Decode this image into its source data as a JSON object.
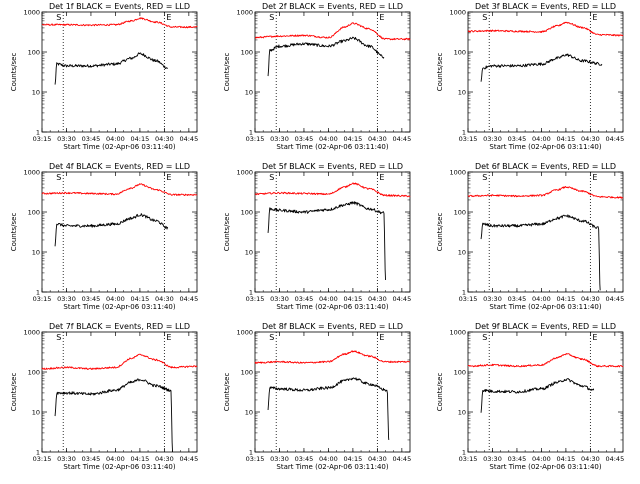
{
  "page": {
    "figure": "detector count-rate grid"
  },
  "common": {
    "xlabel": "Start Time (02-Apr-06 03:11:40)",
    "ylabel": "Counts/sec",
    "x_ticks": [
      "03:15",
      "03:30",
      "03:45",
      "04:00",
      "04:15",
      "04:30",
      "04:45"
    ],
    "y_ticks": [
      "1",
      "10",
      "100",
      "1000"
    ],
    "start_marker": "S",
    "end_marker": "E",
    "colors": {
      "events": "#000000",
      "lld": "#ff0000"
    }
  },
  "chart_data": [
    {
      "type": "line",
      "title": "Det 1f BLACK = Events, RED = LLD",
      "xlim": [
        "03:15",
        "04:50"
      ],
      "ylim": [
        1,
        1000
      ],
      "yscale": "log",
      "xlabel": "Start Time (02-Apr-06 03:11:40)",
      "ylabel": "Counts/sec",
      "vlines": [
        "03:28",
        "04:30"
      ],
      "series": [
        {
          "name": "Events",
          "color": "#000000",
          "x": [
            "03:23",
            "03:24",
            "03:30",
            "03:45",
            "04:00",
            "04:10",
            "04:15",
            "04:25",
            "04:32"
          ],
          "values": [
            15,
            50,
            45,
            45,
            50,
            70,
            90,
            60,
            40
          ]
        },
        {
          "name": "LLD",
          "color": "#ff0000",
          "x": [
            "03:15",
            "03:30",
            "03:45",
            "04:00",
            "04:10",
            "04:15",
            "04:25",
            "04:35",
            "04:50"
          ],
          "values": [
            480,
            480,
            470,
            480,
            600,
            700,
            560,
            420,
            420
          ]
        }
      ]
    },
    {
      "type": "line",
      "title": "Det 2f BLACK = Events, RED = LLD",
      "xlim": [
        "03:15",
        "04:50"
      ],
      "ylim": [
        1,
        1000
      ],
      "yscale": "log",
      "xlabel": "Start Time (02-Apr-06 03:11:40)",
      "ylabel": "Counts/sec",
      "vlines": [
        "03:28",
        "04:30"
      ],
      "series": [
        {
          "name": "Events",
          "color": "#000000",
          "x": [
            "03:23",
            "03:24",
            "03:30",
            "03:45",
            "04:00",
            "04:10",
            "04:15",
            "04:25",
            "04:34"
          ],
          "values": [
            25,
            110,
            140,
            160,
            140,
            190,
            220,
            140,
            75
          ]
        },
        {
          "name": "LLD",
          "color": "#ff0000",
          "x": [
            "03:15",
            "03:30",
            "03:45",
            "04:00",
            "04:10",
            "04:15",
            "04:25",
            "04:35",
            "04:50"
          ],
          "values": [
            230,
            250,
            260,
            230,
            420,
            520,
            380,
            210,
            210
          ]
        }
      ]
    },
    {
      "type": "line",
      "title": "Det 3f BLACK = Events, RED = LLD",
      "xlim": [
        "03:15",
        "04:50"
      ],
      "ylim": [
        1,
        1000
      ],
      "yscale": "log",
      "xlabel": "Start Time (02-Apr-06 03:11:40)",
      "ylabel": "Counts/sec",
      "vlines": [
        "03:28",
        "04:30"
      ],
      "series": [
        {
          "name": "Events",
          "color": "#000000",
          "x": [
            "03:23",
            "03:24",
            "03:30",
            "03:45",
            "04:00",
            "04:10",
            "04:15",
            "04:25",
            "04:37"
          ],
          "values": [
            18,
            40,
            45,
            45,
            50,
            70,
            85,
            60,
            50
          ]
        },
        {
          "name": "LLD",
          "color": "#ff0000",
          "x": [
            "03:15",
            "03:30",
            "03:45",
            "04:00",
            "04:10",
            "04:15",
            "04:25",
            "04:35",
            "04:50"
          ],
          "values": [
            330,
            340,
            330,
            320,
            450,
            550,
            410,
            270,
            260
          ]
        }
      ]
    },
    {
      "type": "line",
      "title": "Det 4f BLACK = Events, RED = LLD",
      "xlim": [
        "03:15",
        "04:50"
      ],
      "ylim": [
        1,
        1000
      ],
      "yscale": "log",
      "xlabel": "Start Time (02-Apr-06 03:11:40)",
      "ylabel": "Counts/sec",
      "vlines": [
        "03:28",
        "04:30"
      ],
      "series": [
        {
          "name": "Events",
          "color": "#000000",
          "x": [
            "03:23",
            "03:24",
            "03:30",
            "03:45",
            "04:00",
            "04:10",
            "04:15",
            "04:25",
            "04:32"
          ],
          "values": [
            15,
            50,
            45,
            45,
            50,
            70,
            85,
            60,
            40
          ]
        },
        {
          "name": "LLD",
          "color": "#ff0000",
          "x": [
            "03:15",
            "03:30",
            "03:45",
            "04:00",
            "04:10",
            "04:15",
            "04:25",
            "04:35",
            "04:50"
          ],
          "values": [
            290,
            300,
            290,
            280,
            400,
            490,
            360,
            270,
            270
          ]
        }
      ]
    },
    {
      "type": "line",
      "title": "Det 5f BLACK = Events, RED = LLD",
      "xlim": [
        "03:15",
        "04:50"
      ],
      "ylim": [
        1,
        1000
      ],
      "yscale": "log",
      "xlabel": "Start Time (02-Apr-06 03:11:40)",
      "ylabel": "Counts/sec",
      "vlines": [
        "03:28",
        "04:30"
      ],
      "series": [
        {
          "name": "Events",
          "color": "#000000",
          "x": [
            "03:23",
            "03:24",
            "03:30",
            "03:45",
            "04:00",
            "04:10",
            "04:15",
            "04:25",
            "04:34",
            "04:35"
          ],
          "values": [
            30,
            120,
            110,
            100,
            115,
            150,
            170,
            120,
            95,
            2
          ]
        },
        {
          "name": "LLD",
          "color": "#ff0000",
          "x": [
            "03:15",
            "03:30",
            "03:45",
            "04:00",
            "04:10",
            "04:15",
            "04:25",
            "04:35",
            "04:50"
          ],
          "values": [
            280,
            300,
            290,
            280,
            420,
            520,
            380,
            260,
            250
          ]
        }
      ]
    },
    {
      "type": "line",
      "title": "Det 6f BLACK = Events, RED = LLD",
      "xlim": [
        "03:15",
        "04:50"
      ],
      "ylim": [
        1,
        1000
      ],
      "yscale": "log",
      "xlabel": "Start Time (02-Apr-06 03:11:40)",
      "ylabel": "Counts/sec",
      "vlines": [
        "03:28",
        "04:30"
      ],
      "series": [
        {
          "name": "Events",
          "color": "#000000",
          "x": [
            "03:23",
            "03:24",
            "03:30",
            "03:45",
            "04:00",
            "04:10",
            "04:15",
            "04:25",
            "04:35",
            "04:36"
          ],
          "values": [
            20,
            50,
            45,
            45,
            50,
            70,
            80,
            60,
            40,
            1.1
          ]
        },
        {
          "name": "LLD",
          "color": "#ff0000",
          "x": [
            "03:15",
            "03:30",
            "03:45",
            "04:00",
            "04:10",
            "04:15",
            "04:25",
            "04:35",
            "04:50"
          ],
          "values": [
            250,
            260,
            250,
            260,
            360,
            420,
            330,
            240,
            230
          ]
        }
      ]
    },
    {
      "type": "line",
      "title": "Det 7f BLACK = Events, RED = LLD",
      "xlim": [
        "03:15",
        "04:50"
      ],
      "ylim": [
        1,
        1000
      ],
      "yscale": "log",
      "xlabel": "Start Time (02-Apr-06 03:11:40)",
      "ylabel": "Counts/sec",
      "vlines": [
        "03:28",
        "04:30"
      ],
      "series": [
        {
          "name": "Events",
          "color": "#000000",
          "x": [
            "03:23",
            "03:24",
            "03:30",
            "03:45",
            "04:00",
            "04:10",
            "04:15",
            "04:25",
            "04:34",
            "04:35"
          ],
          "values": [
            8,
            30,
            30,
            28,
            35,
            55,
            65,
            45,
            35,
            1
          ]
        },
        {
          "name": "LLD",
          "color": "#ff0000",
          "x": [
            "03:15",
            "03:30",
            "03:45",
            "04:00",
            "04:10",
            "04:15",
            "04:25",
            "04:35",
            "04:50"
          ],
          "values": [
            120,
            130,
            120,
            130,
            220,
            270,
            200,
            130,
            140
          ]
        }
      ]
    },
    {
      "type": "line",
      "title": "Det 8f BLACK = Events, RED = LLD",
      "xlim": [
        "03:15",
        "04:50"
      ],
      "ylim": [
        1,
        1000
      ],
      "yscale": "log",
      "xlabel": "Start Time (02-Apr-06 03:11:40)",
      "ylabel": "Counts/sec",
      "vlines": [
        "03:28",
        "04:30"
      ],
      "series": [
        {
          "name": "Events",
          "color": "#000000",
          "x": [
            "03:23",
            "03:24",
            "03:30",
            "03:45",
            "04:00",
            "04:10",
            "04:15",
            "04:25",
            "04:36",
            "04:37"
          ],
          "values": [
            12,
            40,
            38,
            35,
            40,
            60,
            70,
            50,
            35,
            2
          ]
        },
        {
          "name": "LLD",
          "color": "#ff0000",
          "x": [
            "03:15",
            "03:30",
            "03:45",
            "04:00",
            "04:10",
            "04:15",
            "04:25",
            "04:35",
            "04:50"
          ],
          "values": [
            170,
            180,
            170,
            180,
            280,
            330,
            250,
            180,
            180
          ]
        }
      ]
    },
    {
      "type": "line",
      "title": "Det 9f BLACK = Events, RED = LLD",
      "xlim": [
        "03:15",
        "04:50"
      ],
      "ylim": [
        1,
        1000
      ],
      "yscale": "log",
      "xlabel": "Start Time (02-Apr-06 03:11:40)",
      "ylabel": "Counts/sec",
      "vlines": [
        "03:28",
        "04:30"
      ],
      "series": [
        {
          "name": "Events",
          "color": "#000000",
          "x": [
            "03:23",
            "03:24",
            "03:30",
            "03:45",
            "04:00",
            "04:10",
            "04:15",
            "04:25",
            "04:32"
          ],
          "values": [
            10,
            35,
            33,
            32,
            38,
            55,
            65,
            45,
            35
          ]
        },
        {
          "name": "LLD",
          "color": "#ff0000",
          "x": [
            "03:15",
            "03:30",
            "03:45",
            "04:00",
            "04:10",
            "04:15",
            "04:25",
            "04:35",
            "04:50"
          ],
          "values": [
            140,
            150,
            140,
            150,
            230,
            280,
            210,
            140,
            140
          ]
        }
      ]
    }
  ]
}
